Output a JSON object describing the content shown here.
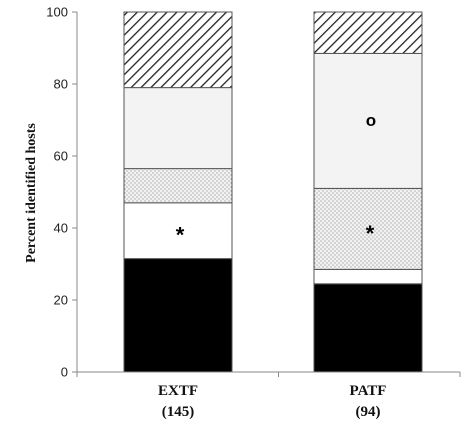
{
  "chart_data": {
    "type": "bar",
    "stacked": true,
    "categories": [
      "EXTF",
      "PATF"
    ],
    "category_counts": [
      "(145)",
      "(94)"
    ],
    "ylabel": "Percent identified hosts",
    "xlabel": "",
    "ylim": [
      0,
      100
    ],
    "yticks": [
      0,
      20,
      40,
      60,
      80,
      100
    ],
    "grid": false,
    "legend": "none",
    "segments": [
      {
        "fill": "solid-black",
        "values": [
          31.5,
          24.5
        ]
      },
      {
        "fill": "white",
        "values": [
          15.5,
          4.0
        ]
      },
      {
        "fill": "dotted",
        "values": [
          9.5,
          22.5
        ]
      },
      {
        "fill": "light-gray",
        "values": [
          22.5,
          37.5
        ]
      },
      {
        "fill": "diagonal-hatch",
        "values": [
          21.0,
          11.5
        ]
      }
    ],
    "annotations": [
      {
        "text": "*",
        "category": "EXTF",
        "segment": 1
      },
      {
        "text": "*",
        "category": "PATF",
        "segment": 2
      },
      {
        "text": "o",
        "category": "PATF",
        "segment": 3
      }
    ]
  }
}
